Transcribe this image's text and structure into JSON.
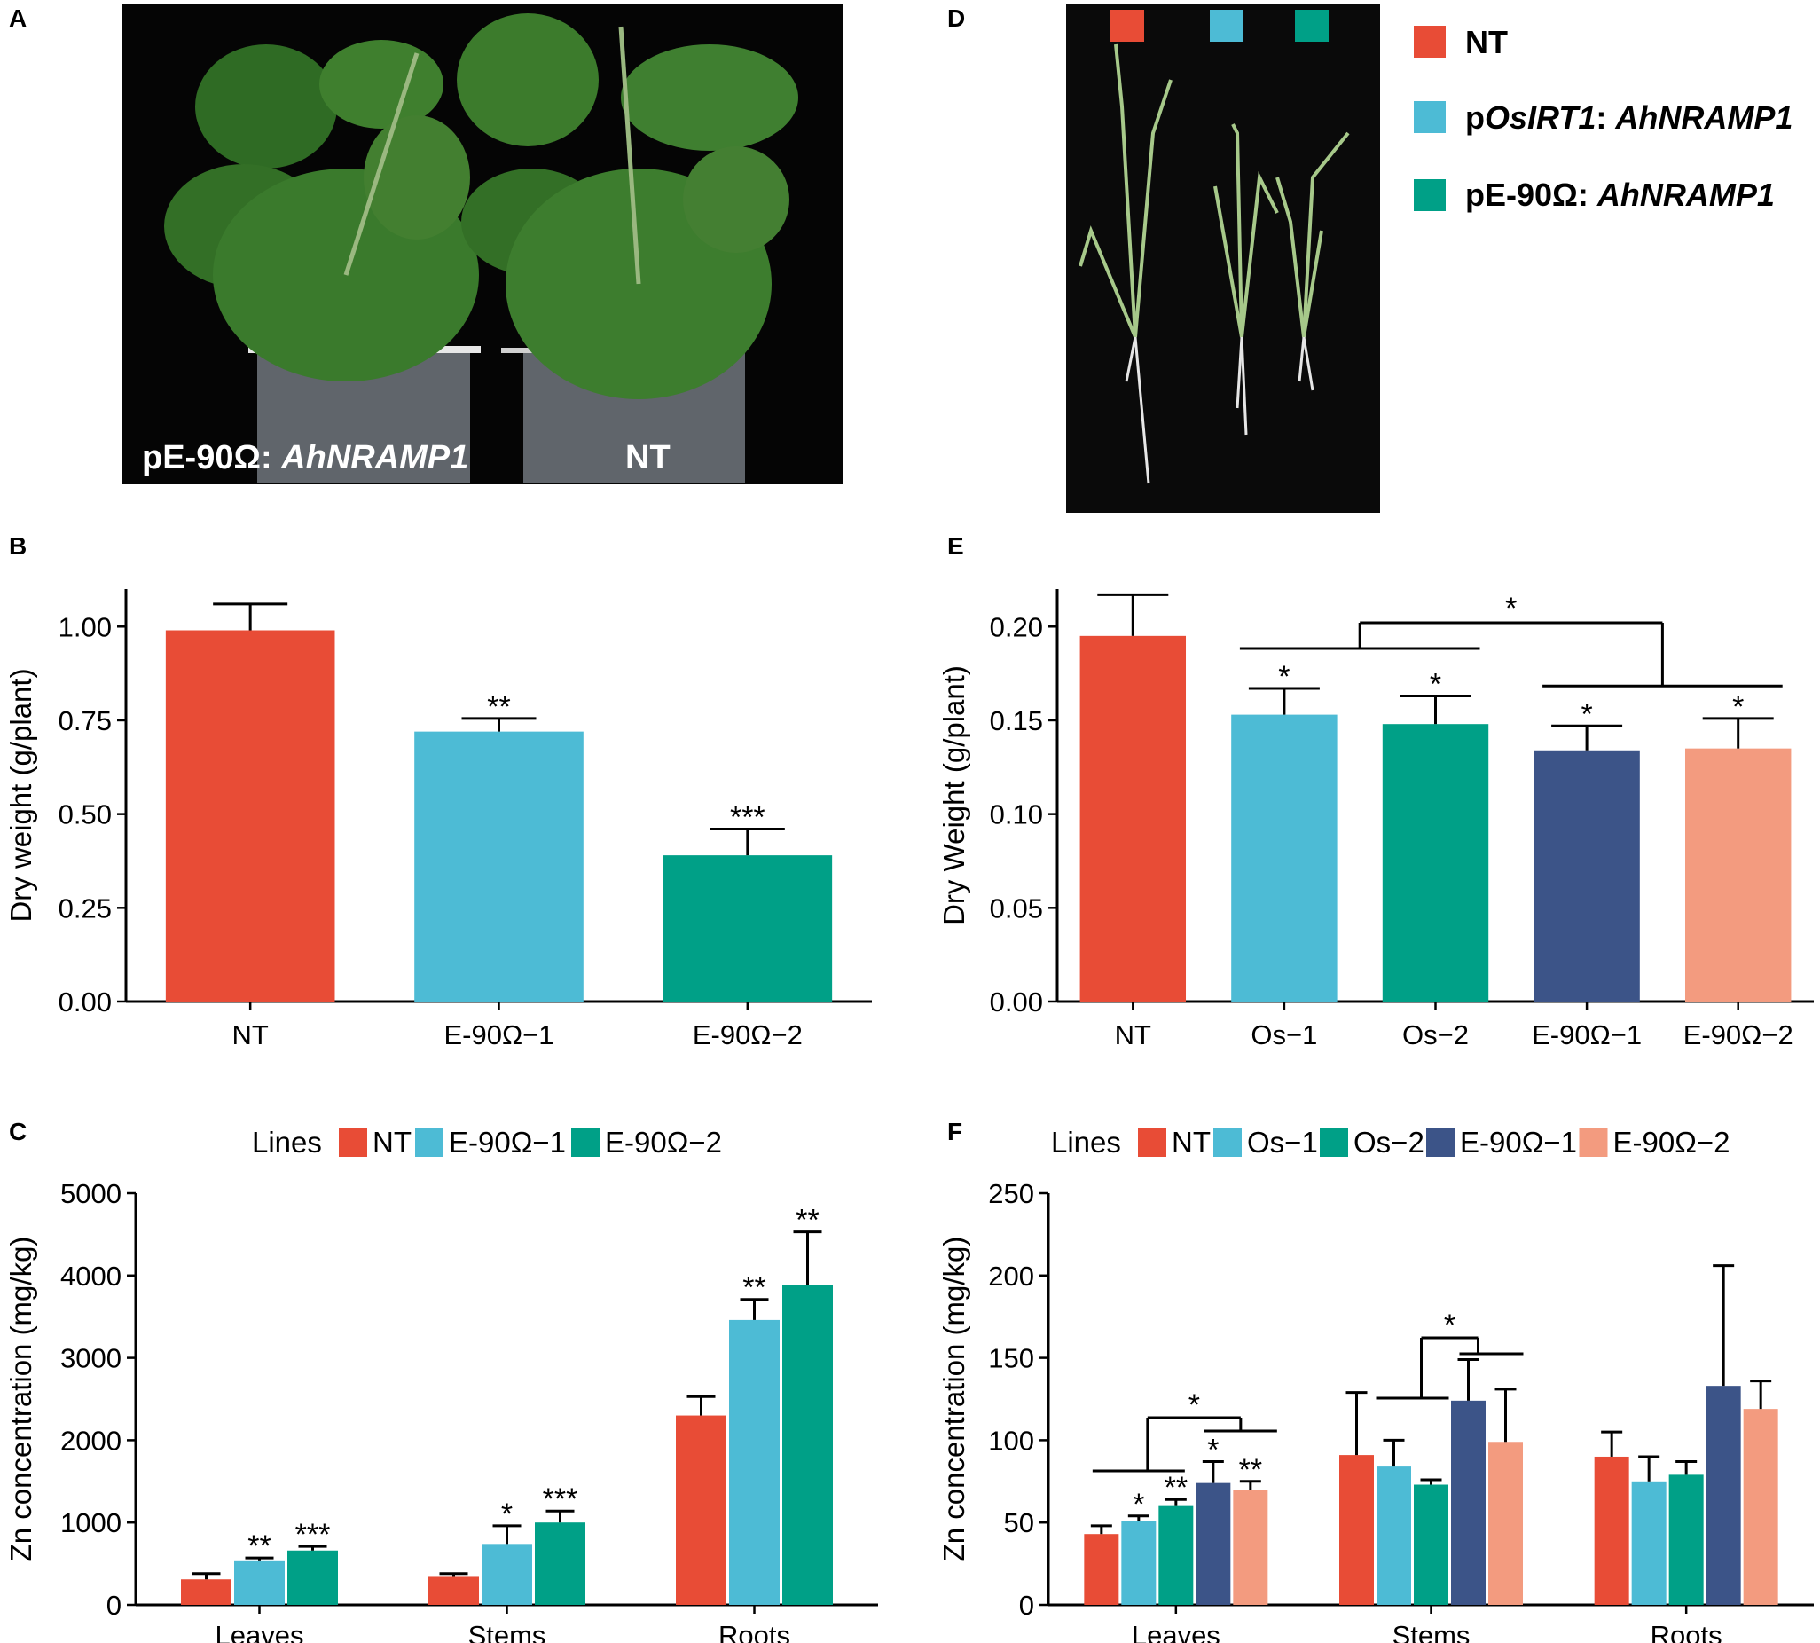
{
  "colors": {
    "NT": "#e84c36",
    "E-90Ω−1": "#4dbbd5",
    "E-90Ω−2": "#00a087",
    "Os−1": "#4dbbd5",
    "Os−2": "#00a087",
    "F:E-90Ω−1": "#3c5488",
    "F:E-90Ω−2": "#f39b7f",
    "axis": "#000000"
  },
  "panels": {
    "A": {
      "label": "A",
      "caption_prefix": "pE-90Ω: ",
      "caption_gene": "AhNRAMP1",
      "caption_nt": "NT",
      "content": "tobacco-plants-photo"
    },
    "D": {
      "label": "D",
      "content": "rice-seedlings-photo",
      "legend": [
        {
          "key": "NT",
          "prefix": "",
          "italic": "",
          "suffix": "NT",
          "color": "#e84c36"
        },
        {
          "key": "pOsIRT1",
          "prefix": "p",
          "italic": "OsIRT1",
          "suffix": ": ",
          "italic2": "AhNRAMP1",
          "color": "#4dbbd5"
        },
        {
          "key": "pE90",
          "prefix": "pE-90Ω: ",
          "italic": "AhNRAMP1",
          "suffix": "",
          "color": "#00a087"
        }
      ]
    }
  },
  "chart_data": [
    {
      "panel": "B",
      "type": "bar",
      "ylabel": "Dry weight (g/plant)",
      "ylim": [
        0,
        1.1
      ],
      "yticks": [
        "0.00",
        "0.25",
        "0.50",
        "0.75",
        "1.00"
      ],
      "ytick_values": [
        0,
        0.25,
        0.5,
        0.75,
        1.0
      ],
      "categories": [
        "NT",
        "E-90Ω−1",
        "E-90Ω−2"
      ],
      "values": [
        0.99,
        0.72,
        0.39
      ],
      "errors": [
        0.07,
        0.035,
        0.07
      ],
      "significance": [
        "",
        "**",
        "***"
      ],
      "colors": [
        "#e84c36",
        "#4dbbd5",
        "#00a087"
      ]
    },
    {
      "panel": "E",
      "type": "bar",
      "ylabel": "Dry Weight (g/plant)",
      "ylim": [
        0,
        0.22
      ],
      "yticks": [
        "0.00",
        "0.05",
        "0.10",
        "0.15",
        "0.20"
      ],
      "ytick_values": [
        0,
        0.05,
        0.1,
        0.15,
        0.2
      ],
      "categories": [
        "NT",
        "Os−1",
        "Os−2",
        "E-90Ω−1",
        "E-90Ω−2"
      ],
      "values": [
        0.195,
        0.153,
        0.148,
        0.134,
        0.135
      ],
      "errors": [
        0.022,
        0.014,
        0.015,
        0.013,
        0.016
      ],
      "significance": [
        "",
        "*",
        "*",
        "*",
        "*"
      ],
      "group_comparison": "*",
      "colors": [
        "#e84c36",
        "#4dbbd5",
        "#00a087",
        "#3c5488",
        "#f39b7f"
      ]
    },
    {
      "panel": "C",
      "type": "bar",
      "legend_title": "Lines",
      "ylabel": "Zn concentration (mg/kg)",
      "ylim": [
        0,
        5000
      ],
      "yticks": [
        "0",
        "1000",
        "2000",
        "3000",
        "4000",
        "5000"
      ],
      "ytick_values": [
        0,
        1000,
        2000,
        3000,
        4000,
        5000
      ],
      "categories": [
        "Leaves",
        "Stems",
        "Roots"
      ],
      "series": [
        {
          "name": "NT",
          "color": "#e84c36",
          "values": [
            310,
            340,
            2300
          ],
          "errors": [
            70,
            40,
            230
          ],
          "significance": [
            "",
            "",
            ""
          ]
        },
        {
          "name": "E-90Ω−1",
          "color": "#4dbbd5",
          "values": [
            530,
            740,
            3460
          ],
          "errors": [
            40,
            220,
            250
          ],
          "significance": [
            "**",
            "*",
            "**"
          ]
        },
        {
          "name": "E-90Ω−2",
          "color": "#00a087",
          "values": [
            660,
            1000,
            3880
          ],
          "errors": [
            50,
            140,
            650
          ],
          "significance": [
            "***",
            "***",
            "**"
          ]
        }
      ]
    },
    {
      "panel": "F",
      "type": "bar",
      "legend_title": "Lines",
      "ylabel": "Zn concentration (mg/kg)",
      "ylim": [
        0,
        250
      ],
      "yticks": [
        "0",
        "50",
        "100",
        "150",
        "200",
        "250"
      ],
      "ytick_values": [
        0,
        50,
        100,
        150,
        200,
        250
      ],
      "categories": [
        "Leaves",
        "Stems",
        "Roots"
      ],
      "series": [
        {
          "name": "NT",
          "color": "#e84c36",
          "values": [
            43,
            91,
            90
          ],
          "errors": [
            5,
            38,
            15
          ],
          "significance": [
            "",
            "",
            ""
          ]
        },
        {
          "name": "Os−1",
          "color": "#4dbbd5",
          "values": [
            51,
            84,
            75
          ],
          "errors": [
            3,
            16,
            15
          ],
          "significance": [
            "*",
            "",
            ""
          ]
        },
        {
          "name": "Os−2",
          "color": "#00a087",
          "values": [
            60,
            73,
            79
          ],
          "errors": [
            4,
            3,
            8
          ],
          "significance": [
            "**",
            "",
            ""
          ]
        },
        {
          "name": "E-90Ω−1",
          "color": "#3c5488",
          "values": [
            74,
            124,
            133
          ],
          "errors": [
            13,
            25,
            73
          ],
          "significance": [
            "*",
            "",
            ""
          ]
        },
        {
          "name": "E-90Ω−2",
          "color": "#f39b7f",
          "values": [
            70,
            99,
            119
          ],
          "errors": [
            5,
            32,
            17
          ],
          "significance": [
            "**",
            "",
            ""
          ]
        }
      ],
      "group_comparisons": [
        "*",
        "*"
      ]
    }
  ]
}
